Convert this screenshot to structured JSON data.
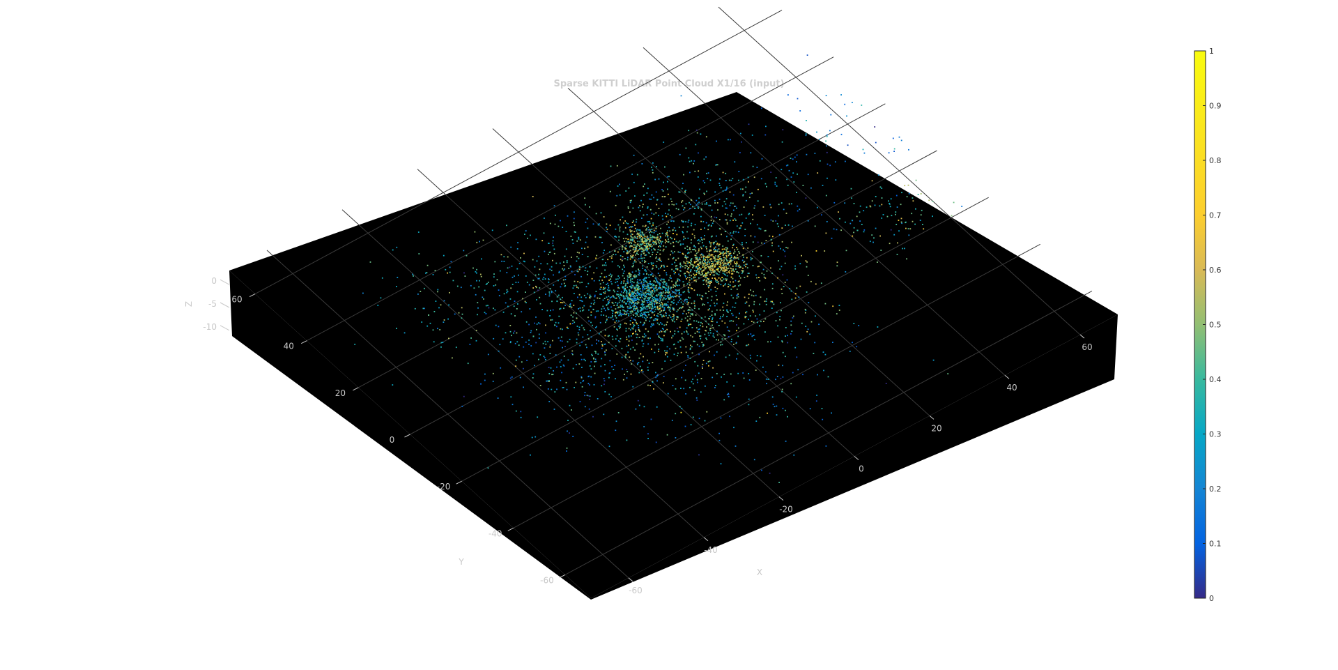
{
  "chart_data": {
    "type": "scatter",
    "subtype": "3d-point-cloud",
    "title": "Sparse KITTI LiDAR Point Cloud X1/16 (input)",
    "xlabel": "X",
    "ylabel": "Y",
    "zlabel": "Z",
    "xlim": [
      -70,
      70
    ],
    "ylim": [
      -70,
      70
    ],
    "zlim": [
      -12,
      2
    ],
    "x_ticks": [
      "-60",
      "-40",
      "-20",
      "0",
      "20",
      "40",
      "60"
    ],
    "y_ticks": [
      "-60",
      "-40",
      "-20",
      "0",
      "20",
      "40",
      "60"
    ],
    "z_ticks": [
      "0",
      "-5",
      "-10"
    ],
    "grid": true,
    "background_color": "#000000",
    "colorbar": {
      "colormap": "parula",
      "range": [
        0,
        1
      ],
      "ticks": [
        "0",
        "0.1",
        "0.2",
        "0.3",
        "0.4",
        "0.5",
        "0.6",
        "0.7",
        "0.8",
        "0.9",
        "1"
      ],
      "placement": "right"
    },
    "value_encoding": "color by normalized intensity",
    "clusters": [
      {
        "center": [
          0,
          0
        ],
        "spread": 14,
        "count": 1400,
        "value_mean": 0.45
      },
      {
        "center": [
          -6,
          3
        ],
        "spread": 4,
        "count": 700,
        "value_mean": 0.32
      },
      {
        "center": [
          12,
          2
        ],
        "spread": 3,
        "count": 420,
        "value_mean": 0.55
      },
      {
        "center": [
          4,
          18
        ],
        "spread": 2.5,
        "count": 260,
        "value_mean": 0.5
      },
      {
        "center": [
          15,
          20
        ],
        "spread": 9,
        "count": 300,
        "value_mean": 0.35
      },
      {
        "center": [
          -20,
          18
        ],
        "spread": 12,
        "count": 260,
        "value_mean": 0.3
      },
      {
        "center": [
          -30,
          -5
        ],
        "spread": 10,
        "count": 160,
        "value_mean": 0.2
      },
      {
        "center": [
          40,
          15
        ],
        "spread": 14,
        "count": 180,
        "value_mean": 0.2
      },
      {
        "center": [
          -5,
          -30
        ],
        "spread": 15,
        "count": 200,
        "value_mean": 0.2
      },
      {
        "center": [
          -35,
          30
        ],
        "spread": 9,
        "count": 120,
        "value_mean": 0.35
      },
      {
        "center": [
          50,
          -10
        ],
        "spread": 6,
        "count": 90,
        "value_mean": 0.4
      }
    ]
  }
}
